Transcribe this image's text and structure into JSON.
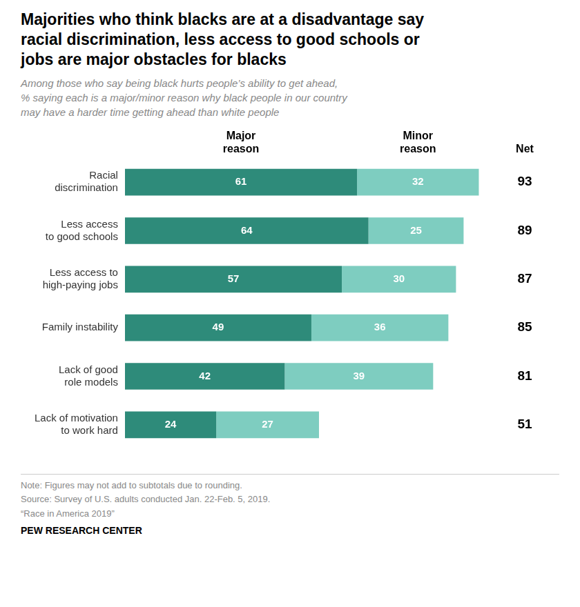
{
  "chart_data": {
    "type": "bar",
    "orientation": "horizontal",
    "stacked": true,
    "title": "Majorities who think blacks are at a disadvantage say\nracial discrimination, less access to good schools or\njobs are major obstacles for blacks",
    "subtitle": "Among those who say being black hurts people’s ability to get ahead,\n% saying each is a major/minor reason why black people in our country\nmay have a harder time getting ahead than white people",
    "categories": [
      "Racial\ndiscrimination",
      "Less access\nto good schools",
      "Less access to\nhigh-paying jobs",
      "Family instability",
      "Lack of good\nrole models",
      "Lack of motivation\nto work hard"
    ],
    "series": [
      {
        "name": "Major\nreason",
        "color": "#2e8b7a",
        "values": [
          61,
          64,
          57,
          49,
          42,
          24
        ]
      },
      {
        "name": "Minor\nreason",
        "color": "#7ecdc0",
        "values": [
          32,
          25,
          30,
          36,
          39,
          27
        ]
      }
    ],
    "net": {
      "name": "Net",
      "values": [
        93,
        89,
        87,
        85,
        81,
        51
      ]
    },
    "notes": [
      "Note: Figures may not add to subtotals due to rounding.",
      "Source: Survey of U.S. adults conducted Jan. 22-Feb. 5, 2019.",
      "“Race in America 2019”",
      "PEW RESEARCH CENTER"
    ],
    "xlim": [
      0,
      96
    ],
    "grid": false,
    "data_labels": true,
    "tick_labels": "y"
  }
}
